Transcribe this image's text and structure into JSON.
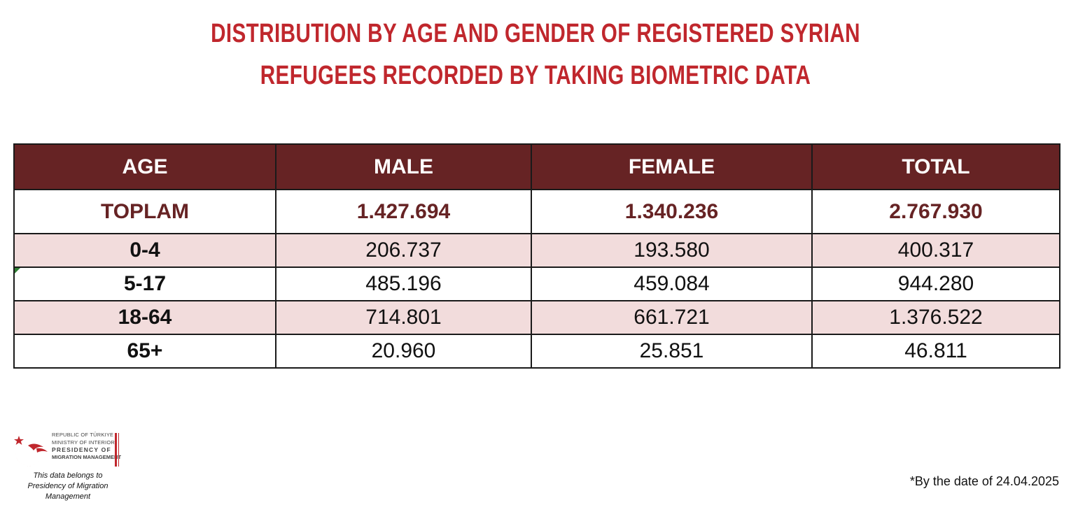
{
  "title": {
    "line1": "DISTRIBUTION BY AGE AND GENDER OF REGISTERED SYRIAN",
    "line2": "REFUGEES RECORDED BY TAKING BIOMETRIC DATA"
  },
  "table": {
    "headers": [
      "AGE",
      "MALE",
      "FEMALE",
      "TOTAL"
    ],
    "total_row": {
      "label": "TOPLAM",
      "male": "1.427.694",
      "female": "1.340.236",
      "total": "2.767.930"
    },
    "rows": [
      {
        "age": "0-4",
        "male": "206.737",
        "female": "193.580",
        "total": "400.317"
      },
      {
        "age": "5-17",
        "male": "485.196",
        "female": "459.084",
        "total": "944.280"
      },
      {
        "age": "18-64",
        "male": "714.801",
        "female": "661.721",
        "total": "1.376.522"
      },
      {
        "age": "65+",
        "male": "20.960",
        "female": "25.851",
        "total": "46.811"
      }
    ]
  },
  "logo": {
    "line1": "REPUBLIC OF TÜRKIYE",
    "line2": "MINISTRY OF INTERIOR",
    "line3": "PRESIDENCY OF",
    "line4": "MIGRATION MANAGEMENT",
    "icon": "crescent-star-bird-icon"
  },
  "footer": {
    "ownership_line1": "This data belongs to",
    "ownership_line2": "Presidency of Migration Management",
    "date_note": "*By the date of 24.04.2025"
  },
  "colors": {
    "title_red": "#c0272d",
    "header_bg": "#662324",
    "shaded_row": "#f2dcdc",
    "total_text": "#662324"
  }
}
